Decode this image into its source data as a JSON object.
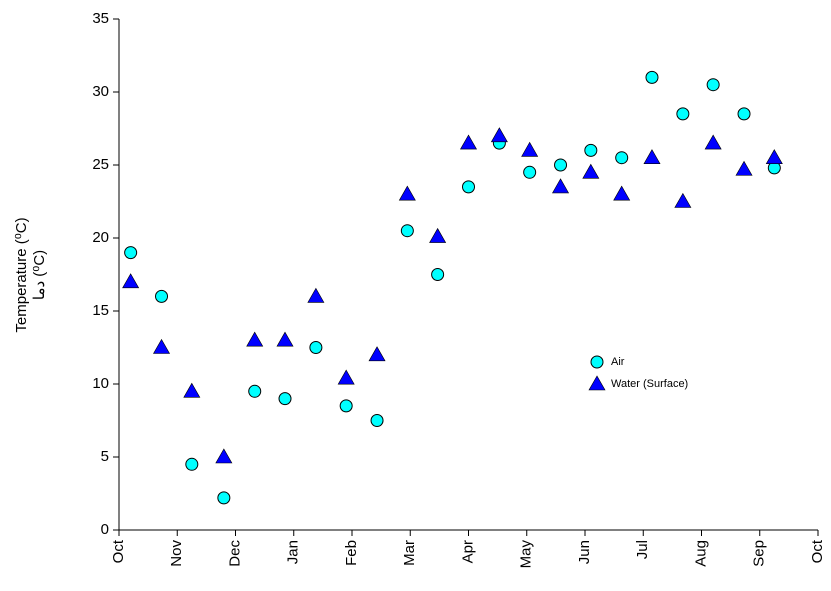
{
  "chart_data": {
    "type": "scatter",
    "y_label": [
      "Temperature (⁰C)",
      "دما (⁰C)"
    ],
    "xlim": [
      0,
      12
    ],
    "xticks": [
      {
        "value": 0,
        "label": "Oct"
      },
      {
        "value": 1,
        "label": "Nov"
      },
      {
        "value": 2,
        "label": "Dec"
      },
      {
        "value": 3,
        "label": "Jan"
      },
      {
        "value": 4,
        "label": "Feb"
      },
      {
        "value": 5,
        "label": "Mar"
      },
      {
        "value": 6,
        "label": "Apr"
      },
      {
        "value": 7,
        "label": "May"
      },
      {
        "value": 8,
        "label": "Jun"
      },
      {
        "value": 9,
        "label": "Jul"
      },
      {
        "value": 10,
        "label": "Aug"
      },
      {
        "value": 11,
        "label": "Sep"
      },
      {
        "value": 12,
        "label": "Oct"
      }
    ],
    "ylim": [
      0,
      35
    ],
    "yticks": [
      0,
      5,
      10,
      15,
      20,
      25,
      30,
      35
    ],
    "grid": false,
    "legend": "right",
    "x": [
      0.2,
      0.73,
      1.25,
      1.8,
      2.33,
      2.85,
      3.38,
      3.9,
      4.43,
      4.95,
      5.47,
      6.0,
      6.53,
      7.05,
      7.58,
      8.1,
      8.63,
      9.15,
      9.68,
      10.2,
      10.73,
      11.25
    ],
    "series": [
      {
        "name": "Air",
        "color": "#00ffff",
        "marker": "circle",
        "values": [
          19,
          16,
          4.5,
          2.2,
          9.5,
          9,
          12.5,
          8.5,
          7.5,
          20.5,
          17.5,
          23.5,
          26.5,
          24.5,
          25,
          26,
          25.5,
          31,
          28.5,
          30.5,
          28.5,
          24.8
        ]
      },
      {
        "name": "Water (Surface)",
        "color": "#0000ff",
        "marker": "triangle",
        "values": [
          17,
          12.5,
          9.5,
          5,
          13,
          13,
          16,
          10.4,
          12,
          23,
          20.1,
          26.5,
          27,
          26,
          23.5,
          24.5,
          23,
          25.5,
          22.5,
          26.5,
          24.7,
          25.5
        ]
      }
    ]
  }
}
